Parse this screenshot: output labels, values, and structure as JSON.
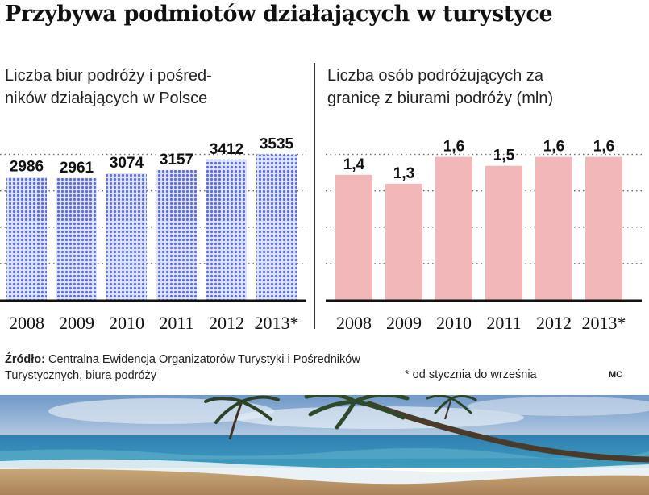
{
  "title": "Przybywa podmiotów działających w turystyce",
  "source_label": "Źródło:",
  "source_text": "Centralna Ewidencja Organizatorów Turystyki i Pośredników Turystycznych, biura podróży",
  "footnote": "* od stycznia do września",
  "author": "MC",
  "colors": {
    "bar_dot": "#5b6ee6",
    "bar_dot_bg": "#dfe3fb",
    "bar_pink": "#f2b7b9",
    "baseline": "#111111",
    "grid_dot": "#6a6a6a"
  },
  "chart_data": [
    {
      "type": "bar",
      "title": "Liczba biur podróży i pośredników działających w Polsce",
      "title_lines": [
        "Liczba biur podróży i pośred-",
        "ników działających w Polsce"
      ],
      "categories": [
        "2008",
        "2009",
        "2010",
        "2011",
        "2012",
        "2013*"
      ],
      "values": [
        2986,
        2961,
        3074,
        3157,
        3412,
        3535
      ],
      "data_labels": [
        "2986",
        "2961",
        "3074",
        "3157",
        "3412",
        "3535"
      ],
      "ylim": [
        0,
        3800
      ],
      "fill": "dotted-blue",
      "grid": true
    },
    {
      "type": "bar",
      "title": "Liczba osób podróżujących za granicę z biurami podróży (mln)",
      "title_lines": [
        "Liczba osób podróżujących za",
        "granicę z biurami podróży (mln)"
      ],
      "categories": [
        "2008",
        "2009",
        "2010",
        "2011",
        "2012",
        "2013*"
      ],
      "values": [
        1.4,
        1.3,
        1.6,
        1.5,
        1.6,
        1.6
      ],
      "data_labels": [
        "1,4",
        "1,3",
        "1,6",
        "1,5",
        "1,6",
        "1,6"
      ],
      "ylim": [
        0,
        1.75
      ],
      "fill": "solid-pink",
      "grid": true
    }
  ],
  "photo": {
    "icon": "beach-palm-photo"
  }
}
